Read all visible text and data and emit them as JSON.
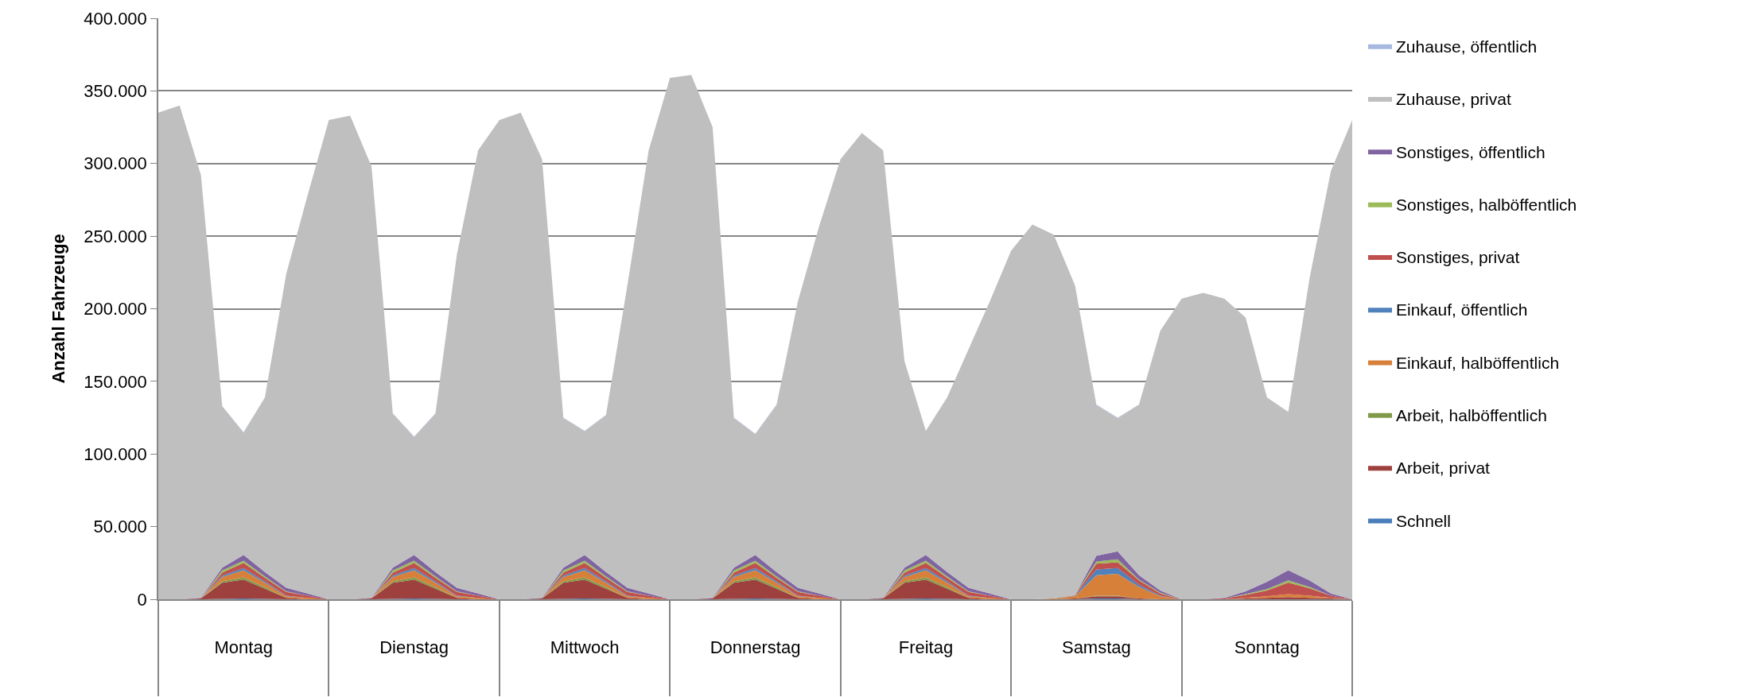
{
  "chart_data": {
    "type": "area",
    "stacked": true,
    "ylabel": "Anzahl Fahrzeuge",
    "categories": [
      null,
      null,
      null,
      null,
      "Montag",
      null,
      null,
      null,
      null,
      null,
      null,
      null,
      "Dienstag",
      null,
      null,
      null,
      null,
      null,
      null,
      null,
      "Mittwoch",
      null,
      null,
      null,
      null,
      null,
      null,
      null,
      "Donnerstag",
      null,
      null,
      null,
      null,
      null,
      null,
      null,
      "Freitag",
      null,
      null,
      null,
      null,
      null,
      null,
      null,
      "Samstag",
      null,
      null,
      null,
      null,
      null,
      null,
      null,
      "Sonntag",
      null,
      null,
      null,
      null
    ],
    "ylim": [
      0,
      400000
    ],
    "yticks": [
      {
        "value": 0,
        "label": "0"
      },
      {
        "value": 50000,
        "label": "50.000"
      },
      {
        "value": 100000,
        "label": "100.000"
      },
      {
        "value": 150000,
        "label": "150.000"
      },
      {
        "value": 200000,
        "label": "200.000"
      },
      {
        "value": 250000,
        "label": "250.000"
      },
      {
        "value": 300000,
        "label": "300.000"
      },
      {
        "value": 350000,
        "label": "350.000"
      },
      {
        "value": 400000,
        "label": "400.000"
      }
    ],
    "grid": "y",
    "legend": "right",
    "series": [
      {
        "name": "Schnell",
        "color": "#4a7ebb",
        "values": [
          0,
          0,
          0,
          300,
          500,
          300,
          0,
          0,
          0,
          0,
          0,
          300,
          500,
          300,
          0,
          0,
          0,
          0,
          0,
          300,
          500,
          300,
          0,
          0,
          0,
          0,
          0,
          300,
          500,
          300,
          0,
          0,
          0,
          0,
          0,
          300,
          500,
          300,
          0,
          0,
          0,
          0,
          0,
          0,
          500,
          500,
          0,
          0,
          0,
          0,
          0,
          0,
          0,
          0,
          0,
          0,
          0
        ]
      },
      {
        "name": "Arbeit, privat",
        "color": "#9e413e",
        "values": [
          0,
          0,
          500,
          11000,
          13000,
          7000,
          1000,
          0,
          0,
          0,
          500,
          11000,
          13000,
          7000,
          1000,
          0,
          0,
          0,
          500,
          11000,
          13000,
          7000,
          1000,
          0,
          0,
          0,
          500,
          11000,
          13000,
          7000,
          1000,
          0,
          0,
          0,
          500,
          11000,
          13000,
          7000,
          1000,
          0,
          0,
          0,
          0,
          500,
          1500,
          1500,
          500,
          0,
          0,
          0,
          0,
          500,
          1000,
          1500,
          1000,
          500,
          0
        ]
      },
      {
        "name": "Arbeit, halböffentlich",
        "color": "#7f9a48",
        "values": [
          0,
          0,
          0,
          1000,
          1500,
          1000,
          0,
          0,
          0,
          0,
          0,
          1000,
          1500,
          1000,
          0,
          0,
          0,
          0,
          0,
          1000,
          1500,
          1000,
          0,
          0,
          0,
          0,
          0,
          1000,
          1500,
          1000,
          0,
          0,
          0,
          0,
          0,
          1000,
          1500,
          1000,
          0,
          0,
          0,
          0,
          0,
          0,
          500,
          500,
          0,
          0,
          0,
          0,
          0,
          0,
          0,
          0,
          0,
          0,
          0
        ]
      },
      {
        "name": "Einkauf, halböffentlich",
        "color": "#d7803a",
        "values": [
          0,
          0,
          0,
          3000,
          5000,
          3000,
          1000,
          1000,
          0,
          0,
          0,
          3000,
          5000,
          3000,
          1000,
          1000,
          0,
          0,
          0,
          3000,
          5000,
          3000,
          1000,
          1000,
          0,
          0,
          0,
          3000,
          5000,
          3000,
          1000,
          1000,
          0,
          0,
          0,
          3000,
          5000,
          3000,
          1000,
          1000,
          0,
          0,
          500,
          1500,
          14000,
          15000,
          8000,
          2000,
          0,
          0,
          0,
          500,
          1000,
          2000,
          1500,
          500,
          0
        ]
      },
      {
        "name": "Einkauf, öffentlich",
        "color": "#4f81bd",
        "values": [
          0,
          0,
          0,
          1000,
          1500,
          1000,
          500,
          0,
          0,
          0,
          0,
          1000,
          1500,
          1000,
          500,
          0,
          0,
          0,
          0,
          1000,
          1500,
          1000,
          500,
          0,
          0,
          0,
          0,
          1000,
          1500,
          1000,
          500,
          0,
          0,
          0,
          0,
          1000,
          1500,
          1000,
          500,
          0,
          0,
          0,
          0,
          300,
          4000,
          4000,
          1500,
          500,
          0,
          0,
          0,
          0,
          0,
          0,
          0,
          0,
          0
        ]
      },
      {
        "name": "Sonstiges, privat",
        "color": "#c0504d",
        "values": [
          0,
          0,
          0,
          2000,
          3500,
          2500,
          2500,
          1500,
          0,
          0,
          0,
          2000,
          3500,
          2500,
          2500,
          1500,
          0,
          0,
          0,
          2000,
          3500,
          2500,
          2500,
          1500,
          0,
          0,
          0,
          2000,
          3500,
          2500,
          2500,
          1500,
          0,
          0,
          0,
          2000,
          3500,
          2500,
          2500,
          1500,
          0,
          0,
          0,
          500,
          4000,
          4000,
          3000,
          1500,
          0,
          0,
          500,
          2000,
          4000,
          8000,
          5000,
          1500,
          0
        ]
      },
      {
        "name": "Sonstiges, halböffentlich",
        "color": "#9bbb59",
        "values": [
          0,
          0,
          0,
          1500,
          1500,
          1000,
          500,
          0,
          0,
          0,
          0,
          1500,
          1500,
          1000,
          500,
          0,
          0,
          0,
          0,
          1500,
          1500,
          1000,
          500,
          0,
          0,
          0,
          0,
          1500,
          1500,
          1000,
          500,
          0,
          0,
          0,
          0,
          1500,
          1500,
          1000,
          500,
          0,
          0,
          0,
          0,
          200,
          1500,
          2000,
          500,
          500,
          0,
          0,
          0,
          500,
          1000,
          1500,
          1000,
          0,
          0
        ]
      },
      {
        "name": "Sonstiges, öffentlich",
        "color": "#8064a2",
        "values": [
          0,
          0,
          500,
          2000,
          4000,
          3000,
          2500,
          1500,
          0,
          0,
          500,
          2000,
          4000,
          3000,
          2500,
          1500,
          0,
          0,
          500,
          2000,
          4000,
          3000,
          2500,
          1500,
          0,
          0,
          500,
          2000,
          4000,
          3000,
          2500,
          1500,
          0,
          0,
          500,
          2000,
          4000,
          3000,
          2500,
          1500,
          0,
          0,
          0,
          0,
          4000,
          5500,
          3000,
          1500,
          0,
          0,
          500,
          2000,
          5000,
          7000,
          4500,
          1500,
          0
        ]
      },
      {
        "name": "Zuhause, privat",
        "color": "#bfbfbf",
        "values": [
          335000,
          340000,
          291000,
          111000,
          84200,
          120000,
          216000,
          274000,
          330000,
          333000,
          297000,
          106000,
          81200,
          109000,
          229000,
          305000,
          330000,
          335000,
          302000,
          103000,
          85200,
          108000,
          208000,
          305000,
          359000,
          361000,
          324000,
          103000,
          83200,
          115000,
          197000,
          253000,
          303000,
          321000,
          308000,
          142000,
          85200,
          120000,
          164000,
          201000,
          240000,
          258000,
          250500,
          213000,
          103700,
          91700,
          117500,
          179000,
          207000,
          211000,
          206000,
          188500,
          127000,
          109000,
          208000,
          291000,
          330000
        ]
      },
      {
        "name": "Zuhause, öffentlich",
        "color": "#a7b9e0",
        "values": [
          0,
          0,
          0,
          200,
          300,
          200,
          0,
          0,
          0,
          0,
          0,
          200,
          300,
          200,
          0,
          0,
          0,
          0,
          0,
          200,
          300,
          200,
          0,
          0,
          0,
          0,
          0,
          200,
          300,
          200,
          0,
          0,
          0,
          0,
          0,
          200,
          300,
          200,
          0,
          0,
          0,
          0,
          0,
          0,
          300,
          300,
          0,
          0,
          0,
          0,
          0,
          0,
          0,
          0,
          0,
          0,
          0
        ]
      }
    ]
  }
}
